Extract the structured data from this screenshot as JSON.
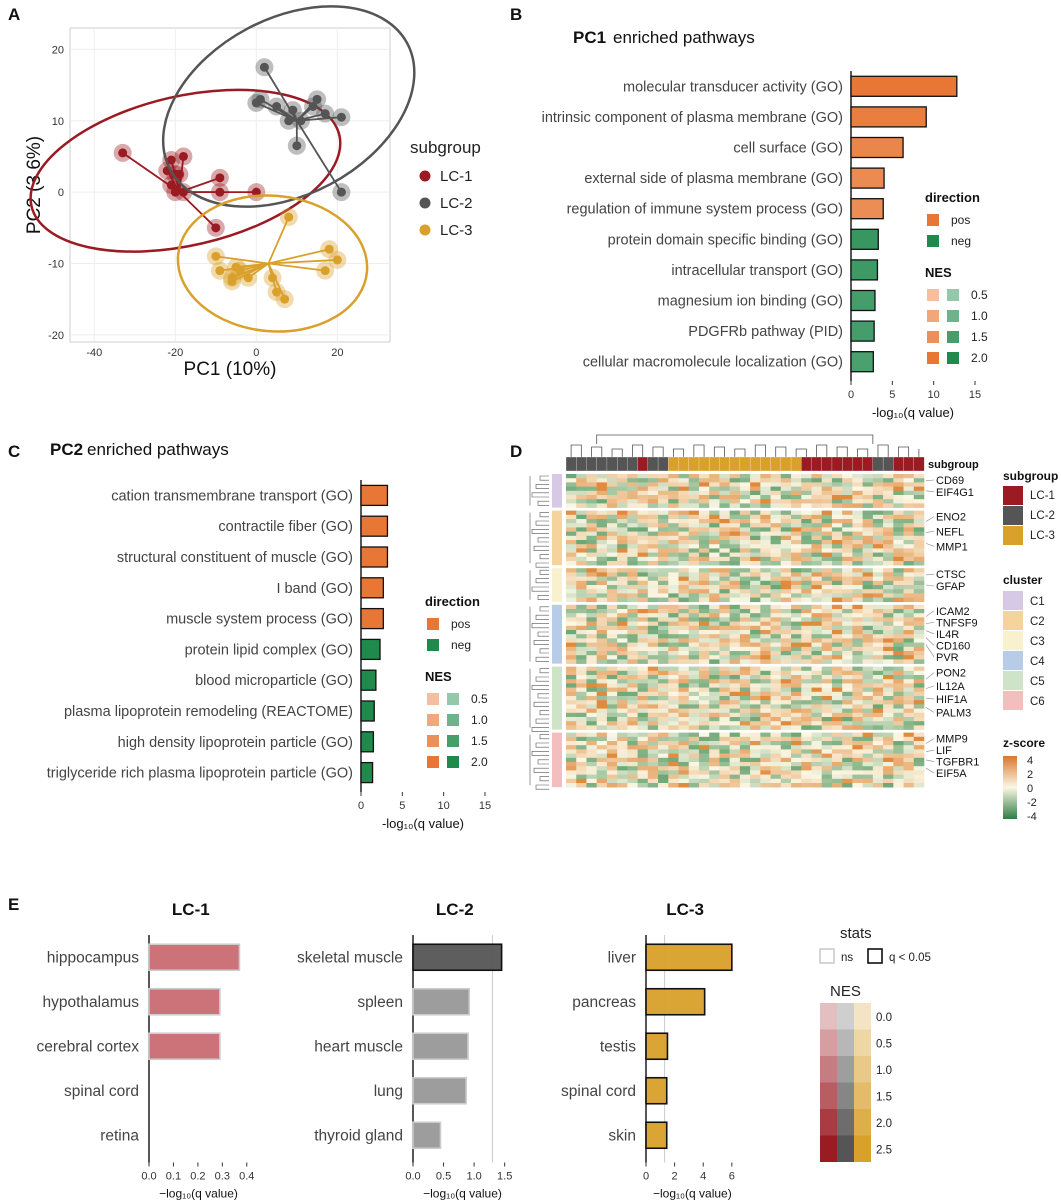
{
  "panels": {
    "A": "A",
    "B": "B",
    "C": "C",
    "D": "D",
    "E": "E"
  },
  "colors": {
    "lc1": "#9B1B22",
    "lc2": "#555555",
    "lc3": "#D9A02B",
    "pos": "#E87735",
    "neg": "#1F8A4C",
    "lc2_ns": "#8C8C8C",
    "lc1_ns": "#C25B60",
    "lc3_sig": "#D9A02B"
  },
  "chart_data": [
    {
      "id": "A",
      "type": "scatter",
      "xlabel": "PC1 (10%)",
      "ylabel": "PC2 (3.6%)",
      "xlim": [
        -46,
        33
      ],
      "ylim": [
        -21,
        23
      ],
      "xticks": [
        -40,
        -20,
        0,
        20
      ],
      "yticks": [
        -20,
        -10,
        0,
        10,
        20
      ],
      "legend_title": "subgroup",
      "series": [
        {
          "name": "LC-1",
          "color": "#9B1B22",
          "centroid": [
            -19,
            0
          ],
          "ellipse": {
            "cx": -17.5,
            "cy": 3,
            "rx": 40,
            "ry": 11,
            "angle": -13
          },
          "points": [
            [
              -33,
              5.5
            ],
            [
              -22,
              3
            ],
            [
              -21,
              4.5
            ],
            [
              -21,
              1
            ],
            [
              -20,
              2.5
            ],
            [
              -19,
              2.5
            ],
            [
              -18,
              0
            ],
            [
              -20,
              0
            ],
            [
              -18,
              5
            ],
            [
              -9,
              2
            ],
            [
              -9,
              0
            ],
            [
              0,
              0
            ],
            [
              -10,
              -5
            ]
          ]
        },
        {
          "name": "LC-2",
          "color": "#555555",
          "centroid": [
            10,
            10
          ],
          "ellipse": {
            "cx": 8,
            "cy": 12,
            "rx": 34,
            "ry": 13,
            "angle": -28
          },
          "points": [
            [
              2,
              17.5
            ],
            [
              1,
              13
            ],
            [
              0,
              12.5
            ],
            [
              5,
              12
            ],
            [
              9,
              11.5
            ],
            [
              11,
              10
            ],
            [
              14,
              12
            ],
            [
              15,
              13
            ],
            [
              17,
              11
            ],
            [
              21,
              10.5
            ],
            [
              8,
              10
            ],
            [
              10,
              6.5
            ],
            [
              21,
              0
            ]
          ]
        },
        {
          "name": "LC-3",
          "color": "#D9A02B",
          "centroid": [
            3,
            -10
          ],
          "ellipse": {
            "cx": 4,
            "cy": -10,
            "rx": 24,
            "ry": 10,
            "angle": 5
          },
          "points": [
            [
              8,
              -3.5
            ],
            [
              -10,
              -9
            ],
            [
              -9,
              -11
            ],
            [
              -5,
              -10.5
            ],
            [
              -4,
              -11
            ],
            [
              -6,
              -12
            ],
            [
              -2,
              -12
            ],
            [
              -6,
              -12.5
            ],
            [
              4,
              -12
            ],
            [
              5,
              -14
            ],
            [
              7,
              -15
            ],
            [
              17,
              -11
            ],
            [
              18,
              -8
            ],
            [
              20,
              -9.5
            ]
          ]
        }
      ]
    },
    {
      "id": "B",
      "type": "bar",
      "title_bold": "PC1",
      "title_rest": " enriched pathways",
      "xlabel": "-log₁₀(q value)",
      "xlim": [
        0,
        15
      ],
      "xticks": [
        0,
        5,
        10,
        15
      ],
      "categories": [
        "molecular transducer activity (GO)",
        "intrinsic component of plasma membrane (GO)",
        "cell surface (GO)",
        "external side of plasma membrane (GO)",
        "regulation of immune system process (GO)",
        "protein domain specific binding (GO)",
        "intracellular transport (GO)",
        "magnesium ion binding (GO)",
        "PDGFRb pathway (PID)",
        "cellular macromolecule localization (GO)"
      ],
      "values": [
        12.8,
        9.1,
        6.3,
        4.0,
        3.9,
        3.3,
        3.2,
        2.9,
        2.8,
        2.7
      ],
      "direction": [
        "pos",
        "pos",
        "pos",
        "pos",
        "pos",
        "neg",
        "neg",
        "neg",
        "neg",
        "neg"
      ],
      "nes": [
        2.0,
        1.8,
        1.6,
        1.5,
        1.4,
        1.6,
        1.5,
        1.4,
        1.4,
        1.3
      ]
    },
    {
      "id": "C",
      "type": "bar",
      "title_bold": "PC2",
      "title_rest": " enriched pathways",
      "xlabel": "-log₁₀(q value)",
      "xlim": [
        0,
        15
      ],
      "xticks": [
        0,
        5,
        10,
        15
      ],
      "categories": [
        "cation transmembrane transport (GO)",
        "contractile fiber (GO)",
        "structural constituent of muscle (GO)",
        "I band (GO)",
        "muscle system process (GO)",
        "protein lipid complex (GO)",
        "blood microparticle (GO)",
        "plasma lipoprotein remodeling (REACTOME)",
        "high density lipoprotein particle (GO)",
        "triglyceride rich plasma lipoprotein particle (GO)"
      ],
      "values": [
        3.2,
        3.2,
        3.2,
        2.7,
        2.7,
        2.3,
        1.8,
        1.6,
        1.5,
        1.4
      ],
      "direction": [
        "pos",
        "pos",
        "pos",
        "pos",
        "pos",
        "neg",
        "neg",
        "neg",
        "neg",
        "neg"
      ],
      "nes": [
        2.0,
        2.0,
        2.0,
        2.0,
        2.0,
        2.0,
        2.0,
        2.0,
        2.0,
        2.0
      ]
    },
    {
      "id": "D",
      "type": "heatmap",
      "column_annotation_label": "subgroup",
      "column_subgroups": [
        "LC-2",
        "LC-2",
        "LC-2",
        "LC-2",
        "LC-2",
        "LC-2",
        "LC-2",
        "LC-1",
        "LC-2",
        "LC-2",
        "LC-3",
        "LC-3",
        "LC-3",
        "LC-3",
        "LC-3",
        "LC-3",
        "LC-3",
        "LC-3",
        "LC-3",
        "LC-3",
        "LC-3",
        "LC-3",
        "LC-3",
        "LC-1",
        "LC-1",
        "LC-1",
        "LC-1",
        "LC-1",
        "LC-1",
        "LC-1",
        "LC-2",
        "LC-2",
        "LC-1",
        "LC-1",
        "LC-1"
      ],
      "clusters": [
        {
          "name": "C1",
          "rows": 8,
          "color": "#D7C8E6",
          "genes": [
            "CD69",
            "EIF4G1"
          ]
        },
        {
          "name": "C2",
          "rows": 13,
          "color": "#F5D49B",
          "genes": [
            "ENO2",
            "NEFL",
            "MMP1"
          ]
        },
        {
          "name": "C3",
          "rows": 8,
          "color": "#F9F1CE",
          "genes": [
            "CTSC",
            "GFAP"
          ]
        },
        {
          "name": "C4",
          "rows": 14,
          "color": "#B7CCE6",
          "genes": [
            "ICAM2",
            "TNFSF9",
            "IL4R",
            "CD160",
            "PVR"
          ]
        },
        {
          "name": "C5",
          "rows": 15,
          "color": "#CFE3C9",
          "genes": [
            "PON2",
            "IL12A",
            "HIF1A",
            "PALM3"
          ]
        },
        {
          "name": "C6",
          "rows": 13,
          "color": "#F3BEBE",
          "genes": [
            "MMP9",
            "LIF",
            "TGFBR1",
            "EIF5A"
          ]
        }
      ],
      "zscore_range": [
        -4,
        4
      ],
      "legend_subgroup_title": "subgroup",
      "legend_cluster_title": "cluster",
      "legend_z_title": "z-score",
      "z_ticks": [
        "4",
        "2",
        "0",
        "-2",
        "-4"
      ]
    },
    {
      "id": "E1",
      "type": "bar",
      "title": "LC-1",
      "xlabel": "−log₁₀(q value)",
      "xlim": [
        0,
        0.45
      ],
      "xticks": [
        "0.0",
        "0.1",
        "0.2",
        "0.3",
        "0.4"
      ],
      "xtick_values": [
        0,
        0.1,
        0.2,
        0.3,
        0.4
      ],
      "categories": [
        "hippocampus",
        "hypothalamus",
        "cerebral cortex",
        "spinal cord",
        "retina"
      ],
      "values": [
        0.37,
        0.29,
        0.29,
        0,
        0
      ],
      "significant": [
        false,
        false,
        false,
        false,
        false
      ],
      "nes": [
        1.5,
        1.5,
        1.5,
        0,
        0
      ]
    },
    {
      "id": "E2",
      "type": "bar",
      "title": "LC-2",
      "xlabel": "−log₁₀(q value)",
      "xlim": [
        0,
        1.8
      ],
      "xticks": [
        "0.0",
        "0.5",
        "1.0",
        "1.5"
      ],
      "xtick_values": [
        0,
        0.5,
        1.0,
        1.5
      ],
      "threshold": 1.3,
      "categories": [
        "skeletal muscle",
        "spleen",
        "heart muscle",
        "lung",
        "thyroid gland"
      ],
      "values": [
        1.45,
        0.92,
        0.9,
        0.87,
        0.45
      ],
      "significant": [
        true,
        false,
        false,
        false,
        false
      ],
      "nes": [
        2.5,
        1.5,
        1.5,
        1.5,
        1.5
      ]
    },
    {
      "id": "E3",
      "type": "bar",
      "title": "LC-3",
      "xlabel": "−log₁₀(q value)",
      "xlim": [
        0,
        7.2
      ],
      "xticks": [
        "0",
        "2",
        "4",
        "6"
      ],
      "xtick_values": [
        0,
        2,
        4,
        6
      ],
      "threshold": 1.3,
      "categories": [
        "liver",
        "pancreas",
        "testis",
        "spinal cord",
        "skin"
      ],
      "values": [
        6.0,
        4.1,
        1.5,
        1.45,
        1.45
      ],
      "significant": [
        true,
        true,
        true,
        true,
        true
      ],
      "nes": [
        2.0,
        2.5,
        1.0,
        1.0,
        1.0
      ]
    }
  ],
  "legends": {
    "direction_title": "direction",
    "direction_items": [
      "pos",
      "neg"
    ],
    "nes_title": "NES",
    "nes_levels": [
      "0.5",
      "1.0",
      "1.5",
      "2.0"
    ],
    "stats_title": "stats",
    "stats_items": [
      "ns",
      "q < 0.05"
    ],
    "e_nes_title": "NES",
    "e_nes_levels": [
      "0.0",
      "0.5",
      "1.0",
      "1.5",
      "2.0",
      "2.5"
    ]
  }
}
